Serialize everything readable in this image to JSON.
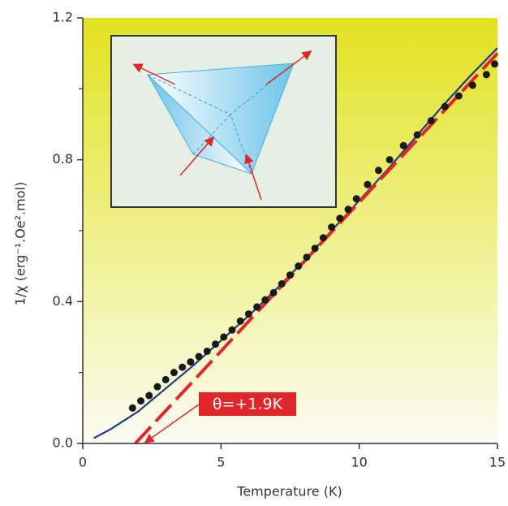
{
  "chart_data": {
    "type": "scatter",
    "xlabel": "Temperature (K)",
    "ylabel": "1/χ (erg⁻¹.Oe².mol)",
    "annotation": "θ=+1.9K",
    "xlim": [
      0,
      15
    ],
    "xticks": [
      0,
      5,
      10,
      15
    ],
    "ylim": [
      0,
      1.2
    ],
    "yticks": [
      {
        "value": 0,
        "label": "0.0"
      },
      0.4,
      0.8,
      1.2
    ],
    "yminorticks": [
      0.2,
      0.6,
      1.0
    ],
    "series": [
      {
        "type": "line",
        "style": "solid",
        "color": "#1f3a8a",
        "x": [
          0.4,
          1,
          2,
          3,
          4,
          5,
          6,
          7,
          8,
          9,
          10,
          11,
          12,
          13,
          14,
          15
        ],
        "values": [
          0.015,
          0.04,
          0.09,
          0.155,
          0.22,
          0.29,
          0.36,
          0.435,
          0.515,
          0.6,
          0.685,
          0.77,
          0.86,
          0.95,
          1.035,
          1.115
        ]
      },
      {
        "type": "line",
        "style": "dashed",
        "color": "#e0262b",
        "x": [
          1.9,
          15
        ],
        "values": [
          0,
          1.1
        ]
      },
      {
        "type": "scatter",
        "color": "#1a1a1a",
        "x": [
          1.8,
          2.1,
          2.4,
          2.7,
          3.0,
          3.3,
          3.6,
          3.9,
          4.2,
          4.5,
          4.8,
          5.1,
          5.4,
          5.7,
          6.0,
          6.3,
          6.6,
          6.9,
          7.2,
          7.5,
          7.8,
          8.1,
          8.4,
          8.7,
          9.0,
          9.3,
          9.6,
          9.9,
          10.3,
          10.7,
          11.1,
          11.6,
          12.1,
          12.6,
          13.1,
          13.6,
          14.1,
          14.6,
          14.9
        ],
        "values": [
          0.1,
          0.12,
          0.135,
          0.16,
          0.18,
          0.2,
          0.215,
          0.23,
          0.245,
          0.26,
          0.28,
          0.3,
          0.32,
          0.345,
          0.365,
          0.385,
          0.405,
          0.425,
          0.45,
          0.475,
          0.5,
          0.525,
          0.55,
          0.58,
          0.61,
          0.635,
          0.66,
          0.69,
          0.73,
          0.77,
          0.8,
          0.84,
          0.87,
          0.91,
          0.95,
          0.98,
          1.01,
          1.04,
          1.07
        ]
      }
    ]
  }
}
